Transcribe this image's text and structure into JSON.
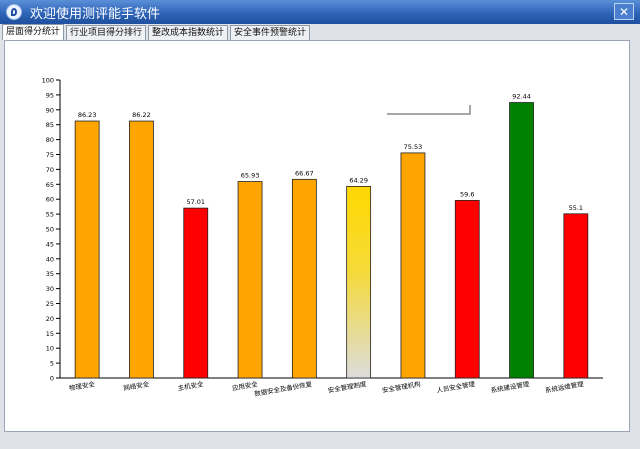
{
  "window": {
    "title": "欢迎使用测评能手软件",
    "close_glyph": "✕"
  },
  "tabs": [
    {
      "label": "层面得分统计",
      "active": true
    },
    {
      "label": "行业项目得分排行",
      "active": false
    },
    {
      "label": "整改成本指数统计",
      "active": false
    },
    {
      "label": "安全事件预警统计",
      "active": false
    }
  ],
  "chart_data": {
    "type": "bar",
    "ylim": [
      0,
      100
    ],
    "yticks": [
      0,
      5,
      10,
      15,
      20,
      25,
      30,
      35,
      40,
      45,
      50,
      55,
      60,
      65,
      70,
      75,
      80,
      85,
      90,
      95,
      100
    ],
    "categories": [
      "物理安全",
      "网络安全",
      "主机安全",
      "应用安全",
      "数据安全及备份恢复",
      "安全管理制度",
      "安全管理机构",
      "人员安全管理",
      "系统建设管理",
      "系统运维管理"
    ],
    "values": [
      86.23,
      86.22,
      57.01,
      65.93,
      66.67,
      64.29,
      75.53,
      59.6,
      92.44,
      55.1
    ],
    "value_labels": [
      "86.23",
      "86.22",
      "57.01",
      "65.93",
      "66.67",
      "64.29",
      "75.53",
      "59.6",
      "92.44",
      "55.1"
    ],
    "colors": [
      "#FFA500",
      "#FFA500",
      "#FF0000",
      "#FFA500",
      "#FFA500",
      "gradient-yellow",
      "#FFA500",
      "#FF0000",
      "#008000",
      "#FF0000"
    ],
    "grid": false,
    "legend": "none"
  }
}
